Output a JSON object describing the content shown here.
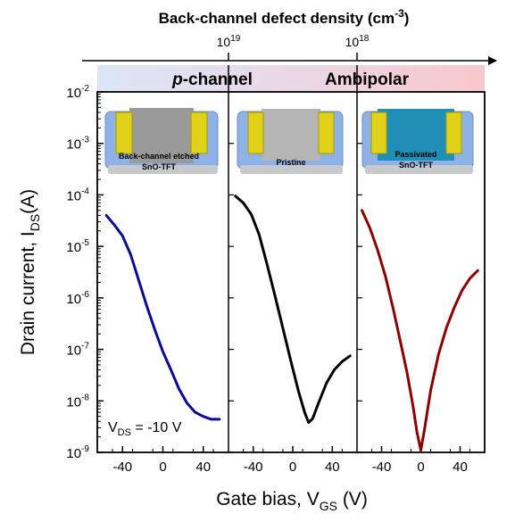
{
  "chart_data": {
    "type": "line",
    "title": "Back-channel defect density (cm",
    "title_superscript": "-3",
    "title_suffix": ")",
    "defect_axis_ticks": [
      {
        "base": "10",
        "exp": "19"
      },
      {
        "base": "10",
        "exp": "18"
      }
    ],
    "regions": [
      {
        "prefix": "p",
        "label": "-channel"
      },
      {
        "prefix": "",
        "label": "Ambipolar"
      }
    ],
    "ylabel": {
      "main": "Drain current, I",
      "sub": "DS",
      "suffix": "(A)"
    },
    "xlabel": {
      "main": "Gate bias, V",
      "sub": "GS",
      "suffix": " (V)"
    },
    "y_scale": "log",
    "ylim": [
      1e-09,
      0.01
    ],
    "y_ticks": [
      {
        "base": "10",
        "exp": "-2",
        "value": 0.01
      },
      {
        "base": "10",
        "exp": "-3",
        "value": 0.001
      },
      {
        "base": "10",
        "exp": "-4",
        "value": 0.0001
      },
      {
        "base": "10",
        "exp": "-5",
        "value": 1e-05
      },
      {
        "base": "10",
        "exp": "-6",
        "value": 1e-06
      },
      {
        "base": "10",
        "exp": "-7",
        "value": 1e-07
      },
      {
        "base": "10",
        "exp": "-8",
        "value": 1e-08
      },
      {
        "base": "10",
        "exp": "-9",
        "value": 1e-09
      }
    ],
    "annotation": {
      "prefix": "V",
      "sub": "DS",
      "suffix": " = -10 V"
    },
    "panels": [
      {
        "inset_label": [
          "Back-channel etched",
          "SnO-TFT"
        ],
        "xlim": [
          -65,
          65
        ],
        "x_ticks": [
          -40,
          0,
          40
        ],
        "series": [
          {
            "color": "#0a0a96",
            "x": [
              -56,
              -48,
              -40,
              -32,
              -24,
              -16,
              -8,
              0,
              8,
              16,
              24,
              32,
              40,
              48,
              56
            ],
            "y": [
              4e-05,
              2.6e-05,
              1.6e-05,
              7e-06,
              2.2e-06,
              7e-07,
              2.4e-07,
              9e-08,
              4e-08,
              1.7e-08,
              9e-09,
              6e-09,
              5e-09,
              4.4e-09,
              4.4e-09
            ]
          }
        ]
      },
      {
        "inset_label": [
          "Pristine"
        ],
        "xlim": [
          -65,
          65
        ],
        "x_ticks": [
          -40,
          0,
          40
        ],
        "series": [
          {
            "color": "#000000",
            "x": [
              -58,
              -50,
              -42,
              -34,
              -26,
              -18,
              -10,
              -2,
              6,
              12,
              16,
              20,
              26,
              34,
              42,
              50,
              58
            ],
            "y": [
              9.5e-05,
              7e-05,
              4.2e-05,
              1.7e-05,
              4.5e-06,
              1.1e-06,
              2.6e-07,
              6e-08,
              1.5e-08,
              6e-09,
              3.8e-09,
              4.5e-09,
              9e-09,
              2.2e-08,
              4e-08,
              5.8e-08,
              7.5e-08
            ]
          }
        ]
      },
      {
        "inset_label": [
          "Passivated",
          "SnO-TFT"
        ],
        "xlim": [
          -65,
          65
        ],
        "x_ticks": [
          -40,
          0,
          40
        ],
        "series": [
          {
            "color": "#8b0000",
            "x": [
              -60,
              -52,
              -44,
              -36,
              -28,
              -20,
              -14,
              -8,
              -4,
              0,
              4,
              10,
              18,
              26,
              34,
              42,
              50,
              58
            ],
            "y": [
              5e-05,
              2.3e-05,
              8.5e-06,
              2.6e-06,
              6e-07,
              1.2e-07,
              3.5e-08,
              8e-09,
              2.5e-09,
              1.1e-09,
              3e-09,
              1.6e-08,
              8e-08,
              2.6e-07,
              6.5e-07,
              1.4e-06,
              2.4e-06,
              3.4e-06
            ]
          }
        ]
      }
    ],
    "grid": false,
    "legend": "none"
  }
}
